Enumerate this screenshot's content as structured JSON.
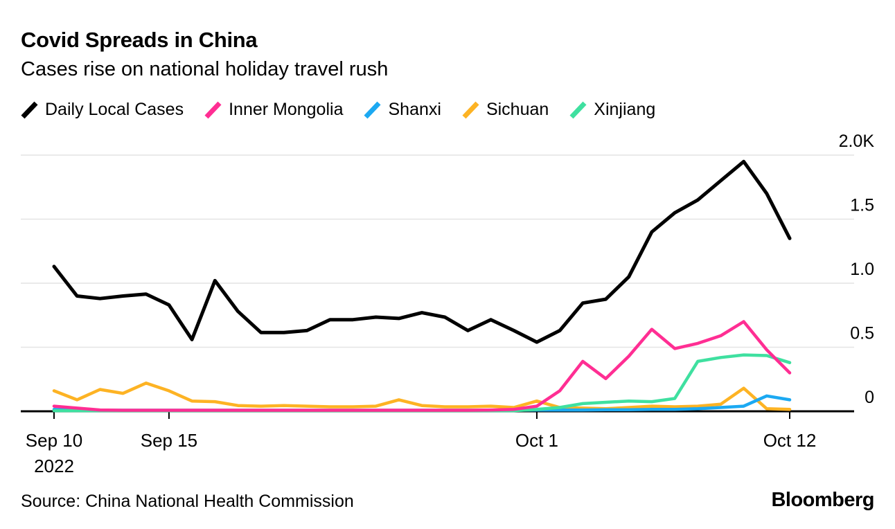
{
  "header": {
    "title": "Covid Spreads in China",
    "subtitle": "Cases rise on national holiday travel rush"
  },
  "footer": {
    "source": "Source: China National Health Commission",
    "brand": "Bloomberg"
  },
  "chart_data": {
    "type": "line",
    "title": "Covid Spreads in China",
    "subtitle": "Cases rise on national holiday travel rush",
    "grid": "horizontal",
    "legend_position": "top",
    "yaxis_side": "right",
    "ylim": [
      0,
      2000
    ],
    "x": [
      "Sep 10",
      "Sep 11",
      "Sep 12",
      "Sep 13",
      "Sep 14",
      "Sep 15",
      "Sep 16",
      "Sep 17",
      "Sep 18",
      "Sep 19",
      "Sep 20",
      "Sep 21",
      "Sep 22",
      "Sep 23",
      "Sep 24",
      "Sep 25",
      "Sep 26",
      "Sep 27",
      "Sep 28",
      "Sep 29",
      "Sep 30",
      "Oct 1",
      "Oct 2",
      "Oct 3",
      "Oct 4",
      "Oct 5",
      "Oct 6",
      "Oct 7",
      "Oct 8",
      "Oct 9",
      "Oct 10",
      "Oct 11",
      "Oct 12"
    ],
    "series": [
      {
        "name": "Daily Local Cases",
        "color": "#000000",
        "values": [
          1130,
          900,
          880,
          900,
          915,
          830,
          560,
          1020,
          780,
          615,
          615,
          630,
          715,
          715,
          735,
          725,
          770,
          735,
          630,
          715,
          630,
          540,
          630,
          845,
          875,
          1050,
          1400,
          1550,
          1650,
          1800,
          1950,
          1700,
          1350
        ]
      },
      {
        "name": "Inner Mongolia",
        "color": "#ff2e93",
        "values": [
          40,
          25,
          10,
          8,
          8,
          8,
          8,
          8,
          8,
          8,
          8,
          8,
          8,
          8,
          8,
          8,
          8,
          8,
          8,
          10,
          15,
          40,
          160,
          390,
          255,
          430,
          640,
          490,
          530,
          590,
          700,
          480,
          300
        ]
      },
      {
        "name": "Shanxi",
        "color": "#1ca9f2",
        "values": [
          15,
          10,
          8,
          8,
          8,
          8,
          8,
          8,
          8,
          8,
          8,
          8,
          8,
          8,
          8,
          8,
          8,
          8,
          8,
          8,
          8,
          10,
          10,
          10,
          12,
          12,
          15,
          15,
          20,
          30,
          40,
          120,
          90
        ]
      },
      {
        "name": "Sichuan",
        "color": "#fdb324",
        "values": [
          160,
          90,
          170,
          140,
          220,
          160,
          80,
          75,
          45,
          40,
          45,
          40,
          35,
          35,
          40,
          90,
          45,
          35,
          35,
          40,
          30,
          80,
          30,
          25,
          20,
          30,
          40,
          35,
          40,
          55,
          180,
          20,
          15
        ]
      },
      {
        "name": "Xinjiang",
        "color": "#3fe0a0",
        "values": [
          5,
          5,
          5,
          5,
          5,
          5,
          5,
          5,
          5,
          5,
          5,
          5,
          5,
          5,
          5,
          5,
          5,
          5,
          5,
          5,
          5,
          15,
          30,
          60,
          70,
          80,
          75,
          100,
          390,
          420,
          440,
          435,
          380
        ]
      }
    ],
    "yticks": [
      {
        "value": 2000,
        "label": "2.0K"
      },
      {
        "value": 1500,
        "label": "1.5"
      },
      {
        "value": 1000,
        "label": "1.0"
      },
      {
        "value": 500,
        "label": "0.5"
      },
      {
        "value": 0,
        "label": "0"
      }
    ],
    "xticks": [
      {
        "index": 0,
        "label": "Sep 10",
        "sublabel": "2022"
      },
      {
        "index": 5,
        "label": "Sep 15",
        "sublabel": ""
      },
      {
        "index": 21,
        "label": "Oct 1",
        "sublabel": ""
      },
      {
        "index": 32,
        "label": "Oct 12",
        "sublabel": ""
      }
    ],
    "colors": {
      "gridline": "#e4e4e4",
      "axis": "#000000",
      "text": "#000000"
    }
  }
}
